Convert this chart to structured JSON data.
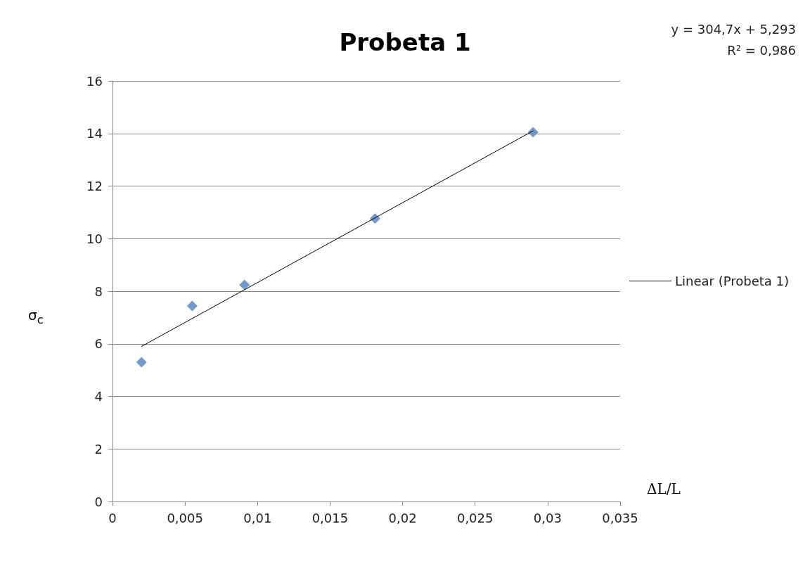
{
  "chart_data": {
    "type": "scatter",
    "title": "Probeta 1",
    "xlabel": "ΔL/L",
    "ylabel": "σ$_{c}$",
    "annotations": [
      "y = 304,7x + 5,293",
      "R² = 0,986"
    ],
    "series": [
      {
        "type": "scatter",
        "color": "#4f81bd",
        "marker": "diamond",
        "x": [
          0.002,
          0.0055,
          0.0091,
          0.0181,
          0.029
        ],
        "values": [
          5.3,
          7.44,
          8.24,
          10.76,
          14.05
        ]
      },
      {
        "type": "line",
        "name": "Linear (Probeta 1)",
        "color": "#000000",
        "marker": "none",
        "line_style": "solid",
        "x": [
          0.002,
          0.029
        ],
        "values": [
          5.9,
          14.1
        ]
      }
    ],
    "xlim": [
      0,
      0.035
    ],
    "xticks": [
      0,
      {
        "value": 0.005,
        "label": "0,005"
      },
      {
        "value": 0.01,
        "label": "0,01"
      },
      {
        "value": 0.015,
        "label": "0,015"
      },
      {
        "value": 0.02,
        "label": "0,02"
      },
      {
        "value": 0.025,
        "label": "0,025"
      },
      {
        "value": 0.03,
        "label": "0,03"
      },
      {
        "value": 0.035,
        "label": "0,035"
      }
    ],
    "ylim": [
      0,
      16
    ],
    "yticks": [
      0,
      2,
      4,
      6,
      8,
      10,
      12,
      14,
      16
    ],
    "grid": "y",
    "legend": "right"
  }
}
